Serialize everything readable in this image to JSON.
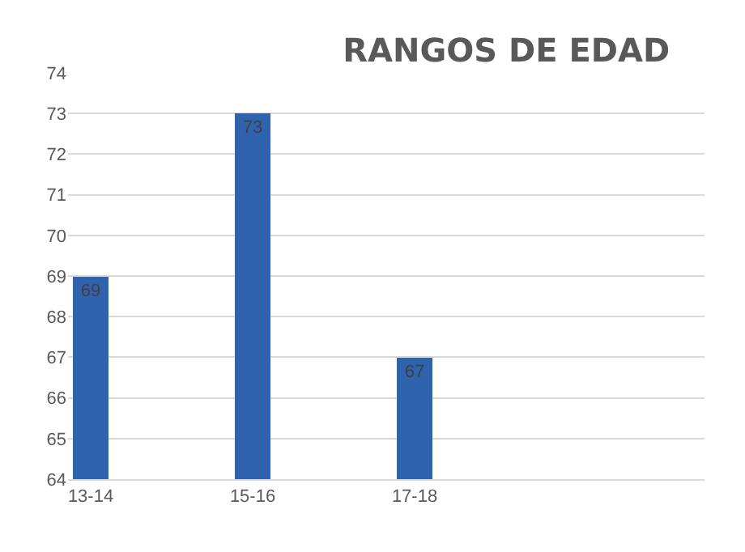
{
  "chart_data": {
    "type": "bar",
    "title": "RANGOS DE EDAD",
    "categories": [
      "13-14",
      "15-16",
      "17-18",
      null
    ],
    "values": [
      69,
      73,
      67,
      null
    ],
    "color": "#2f63ad",
    "ylim": [
      64,
      74
    ],
    "yticks": [
      64,
      65,
      66,
      67,
      68,
      69,
      70,
      71,
      72,
      73,
      74
    ],
    "grid": "y",
    "data_labels": true
  }
}
